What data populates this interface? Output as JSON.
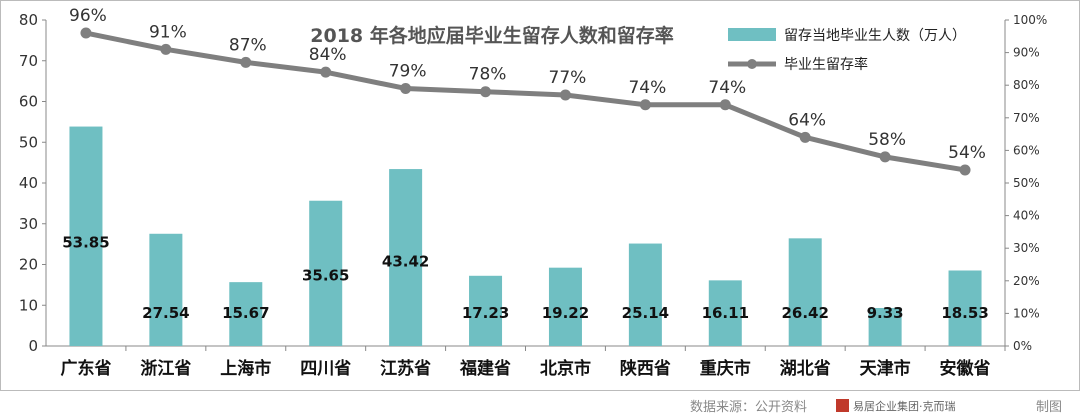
{
  "chart_data": {
    "type": "bar",
    "title": "2018 年各地应届毕业生留存人数和留存率",
    "categories": [
      "广东省",
      "浙江省",
      "上海市",
      "四川省",
      "江苏省",
      "福建省",
      "北京市",
      "陕西省",
      "重庆市",
      "湖北省",
      "天津市",
      "安徽省"
    ],
    "series": [
      {
        "name": "留存当地毕业生人数（万人）",
        "type": "bar",
        "axis": "left",
        "color": "#6fbfc2",
        "values": [
          53.85,
          27.54,
          15.67,
          35.65,
          43.42,
          17.23,
          19.22,
          25.14,
          16.11,
          26.42,
          9.33,
          18.53
        ],
        "labels": [
          "53.85",
          "27.54",
          "15.67",
          "35.65",
          "43.42",
          "17.23",
          "19.22",
          "25.14",
          "16.11",
          "26.42",
          "9.33",
          "18.53"
        ]
      },
      {
        "name": "毕业生留存率",
        "type": "line",
        "axis": "right",
        "color": "#7f7f7f",
        "values": [
          96,
          91,
          87,
          84,
          79,
          78,
          77,
          74,
          74,
          64,
          58,
          54
        ],
        "labels": [
          "96%",
          "91%",
          "87%",
          "84%",
          "79%",
          "78%",
          "77%",
          "74%",
          "74%",
          "64%",
          "58%",
          "54%"
        ]
      }
    ],
    "y_left": {
      "range": [
        0,
        80
      ],
      "ticks": [
        "0",
        "10",
        "20",
        "30",
        "40",
        "50",
        "60",
        "70",
        "80"
      ]
    },
    "y_right": {
      "range": [
        0,
        100
      ],
      "ticks": [
        "0%",
        "10%",
        "20%",
        "30%",
        "40%",
        "50%",
        "60%",
        "70%",
        "80%",
        "90%",
        "100%"
      ]
    },
    "grid": false,
    "legend_position": "top-right"
  },
  "source": {
    "text": "数据来源：公开资料",
    "logo_text": "易居企业集团·克而瑞",
    "suffix": "制图"
  }
}
